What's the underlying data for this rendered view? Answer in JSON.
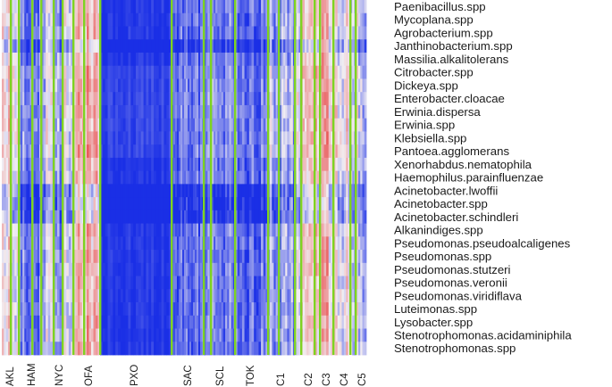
{
  "chart_data": {
    "type": "heatmap",
    "title": "",
    "xlabel": "",
    "ylabel": "",
    "row_labels": [
      "Paenibacillus.spp",
      "Mycoplana.spp",
      "Agrobacterium.spp",
      "Janthinobacterium.spp",
      "Massilia.alkalitolerans",
      "Citrobacter.spp",
      "Dickeya.spp",
      "Enterobacter.cloacae",
      "Erwinia.dispersa",
      "Erwinia.spp",
      "Klebsiella.spp",
      "Pantoea.agglomerans",
      "Xenorhabdus.nematophila",
      "Haemophilus.parainfluenzae",
      "Acinetobacter.lwoffii",
      "Acinetobacter.spp",
      "Acinetobacter.schindleri",
      "Alkanindiges.spp",
      "Pseudomonas.pseudoalcaligenes",
      "Pseudomonas.spp",
      "Pseudomonas.stutzeri",
      "Pseudomonas.veronii",
      "Pseudomonas.viridiflava",
      "Luteimonas.spp",
      "Lysobacter.spp",
      "Stenotrophomonas.acidaminiphila",
      "Stenotrophomonas.spp"
    ],
    "column_groups": [
      "AKL",
      "HAM",
      "NYC",
      "OFA",
      "PXO",
      "SAC",
      "SCL",
      "TOK",
      "C1",
      "C2",
      "C3",
      "C4",
      "C5"
    ],
    "color_scale": {
      "low": "#1a2fe6",
      "mid": "#f2eef2",
      "high": "#e85050",
      "separator": "#7ed321"
    },
    "group_profiles": {
      "AKL": "mixed light pink and white with blue bands",
      "HAM": "mostly blue with some white",
      "NYC": "mixed white, light blue and pink",
      "OFA": "pink and red dominant with white",
      "PXO": "uniform dark blue",
      "SAC": "blue with scattered light cells",
      "SCL": "blue with white streaks",
      "TOK": "blue with light streaks",
      "C1": "light blue and pink mix",
      "C2": "pink and white mix",
      "C3": "pink and red mix",
      "C4": "white and light pink",
      "C5": "white, pink and blue mix"
    }
  }
}
